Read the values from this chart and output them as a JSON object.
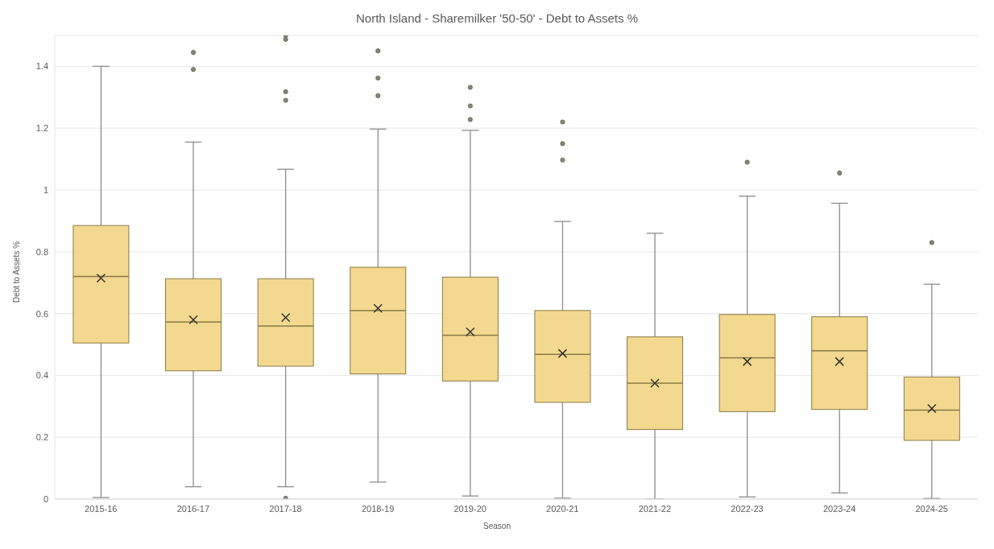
{
  "chart_data": {
    "type": "box",
    "title": "North Island - Sharemilker '50-50' - Debt to Assets %",
    "xlabel": "Season",
    "ylabel": "Debt to Assets %",
    "categories": [
      "2015-16",
      "2016-17",
      "2017-18",
      "2018-19",
      "2019-20",
      "2020-21",
      "2021-22",
      "2022-23",
      "2023-24",
      "2024-25"
    ],
    "boxes": [
      {
        "low": 0.005,
        "q1": 0.505,
        "median": 0.72,
        "q3": 0.885,
        "high": 1.4,
        "mean": 0.715
      },
      {
        "low": 0.04,
        "q1": 0.415,
        "median": 0.573,
        "q3": 0.713,
        "high": 1.155,
        "mean": 0.58,
        "outliers": [
          1.39,
          1.445
        ]
      },
      {
        "low": 0.04,
        "q1": 0.43,
        "median": 0.56,
        "q3": 0.713,
        "high": 1.067,
        "mean": 0.587,
        "outliers": [
          0.003,
          1.29,
          1.318,
          1.487,
          1.5
        ]
      },
      {
        "low": 0.055,
        "q1": 0.405,
        "median": 0.61,
        "q3": 0.75,
        "high": 1.197,
        "mean": 0.617,
        "outliers": [
          1.305,
          1.362,
          1.45
        ]
      },
      {
        "low": 0.01,
        "q1": 0.382,
        "median": 0.53,
        "q3": 0.718,
        "high": 1.193,
        "mean": 0.541,
        "outliers": [
          1.228,
          1.272,
          1.332
        ]
      },
      {
        "low": 0.003,
        "q1": 0.313,
        "median": 0.468,
        "q3": 0.61,
        "high": 0.898,
        "mean": 0.471,
        "outliers": [
          1.097,
          1.15,
          1.22
        ]
      },
      {
        "low": 0.0,
        "q1": 0.225,
        "median": 0.375,
        "q3": 0.525,
        "high": 0.86,
        "mean": 0.375
      },
      {
        "low": 0.007,
        "q1": 0.283,
        "median": 0.457,
        "q3": 0.597,
        "high": 0.98,
        "mean": 0.445,
        "outliers": [
          1.09
        ]
      },
      {
        "low": 0.02,
        "q1": 0.29,
        "median": 0.48,
        "q3": 0.59,
        "high": 0.957,
        "mean": 0.445,
        "outliers": [
          1.055
        ]
      },
      {
        "low": 0.002,
        "q1": 0.19,
        "median": 0.288,
        "q3": 0.395,
        "high": 0.695,
        "mean": 0.293,
        "outliers": [
          0.83
        ]
      }
    ],
    "color": "#f3d98f",
    "ylim": [
      0,
      1.5
    ],
    "yticks": [
      0,
      0.2,
      0.4,
      0.6,
      0.8,
      1,
      1.2,
      1.4
    ],
    "grid": "y"
  }
}
